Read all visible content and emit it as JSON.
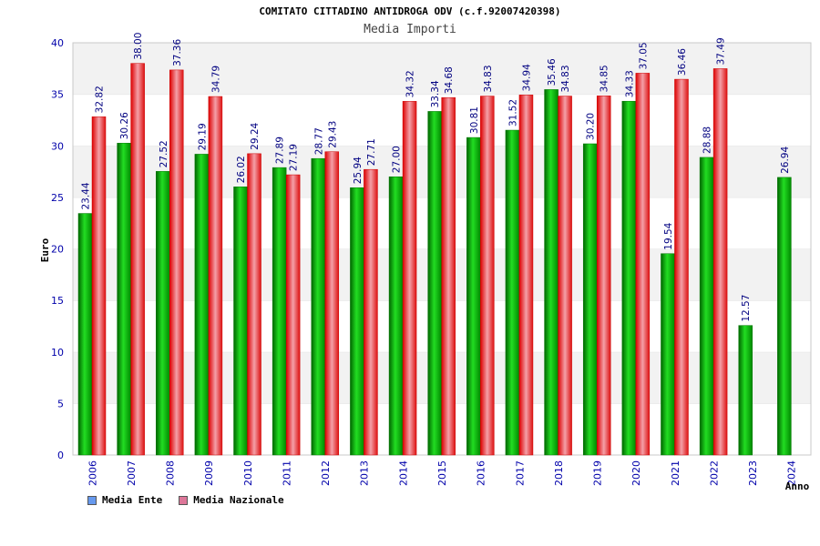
{
  "chart_data": {
    "type": "bar",
    "title": "COMITATO CITTADINO ANTIDROGA ODV (c.f.92007420398)",
    "subtitle": "Media Importi",
    "xlabel": "Anno",
    "ylabel": "Euro",
    "ylim": [
      0,
      40
    ],
    "yticks": [
      "0",
      "5",
      "10",
      "15",
      "20",
      "25",
      "30",
      "35",
      "40"
    ],
    "categories": [
      "2006",
      "2007",
      "2008",
      "2009",
      "2010",
      "2011",
      "2012",
      "2013",
      "2014",
      "2015",
      "2016",
      "2017",
      "2018",
      "2019",
      "2020",
      "2021",
      "2022",
      "2023",
      "2024"
    ],
    "series": [
      {
        "name": "Media Ente",
        "color": "#00aa00",
        "legend_color": "#6699ee",
        "values": [
          23.44,
          30.26,
          27.52,
          29.19,
          26.02,
          27.89,
          28.77,
          25.94,
          27.0,
          33.34,
          30.81,
          31.52,
          35.46,
          30.2,
          34.33,
          19.54,
          28.88,
          12.57,
          26.94
        ],
        "labels": [
          "23.44",
          "30.26",
          "27.52",
          "29.19",
          "26.02",
          "27.89",
          "28.77",
          "25.94",
          "27.00",
          "33.34",
          "30.81",
          "31.52",
          "35.46",
          "30.20",
          "34.33",
          "19.54",
          "28.88",
          "12.57",
          "26.94"
        ]
      },
      {
        "name": "Media Nazionale",
        "color": "#ee2222",
        "legend_color": "#dd7799",
        "values": [
          32.82,
          38.0,
          37.36,
          34.79,
          29.24,
          27.19,
          29.43,
          27.71,
          34.32,
          34.68,
          34.83,
          34.94,
          34.83,
          34.85,
          37.05,
          36.46,
          37.49,
          null,
          null
        ],
        "labels": [
          "32.82",
          "38.00",
          "37.36",
          "34.79",
          "29.24",
          "27.19",
          "29.43",
          "27.71",
          "34.32",
          "34.68",
          "34.83",
          "34.94",
          "34.83",
          "34.85",
          "37.05",
          "36.46",
          "37.49",
          null,
          null
        ]
      }
    ],
    "legend_position": "bottom-left",
    "grid": true
  }
}
